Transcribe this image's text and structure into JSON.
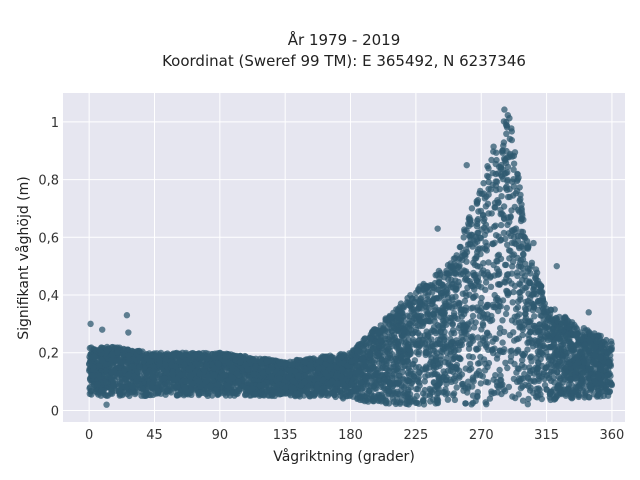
{
  "chart_data": {
    "type": "scatter",
    "title": "År 1979 - 2019",
    "subtitle": "Koordinat (Sweref 99 TM): E 365492, N 6237346",
    "xlabel": "Vågriktning (grader)",
    "ylabel": "Signifikant våghöjd (m)",
    "xlim": [
      -18,
      369
    ],
    "ylim": [
      -0.04,
      1.1
    ],
    "xticks": [
      0,
      45,
      90,
      135,
      180,
      225,
      270,
      315,
      360
    ],
    "xtick_labels": [
      "0",
      "45",
      "90",
      "135",
      "180",
      "225",
      "270",
      "315",
      "360"
    ],
    "yticks": [
      0,
      0.2,
      0.4,
      0.6,
      0.8,
      1
    ],
    "ytick_labels": [
      "0",
      "0,2",
      "0,4",
      "0,6",
      "0,8",
      "1"
    ],
    "grid": true,
    "colors": {
      "marker": "#2f5a70",
      "background": "#e6e6f0",
      "grid": "#ffffff"
    },
    "envelope": {
      "direction": [
        0,
        20,
        45,
        90,
        135,
        180,
        200,
        225,
        250,
        265,
        275,
        283,
        287,
        292,
        300,
        315,
        335,
        360
      ],
      "max_height": [
        0.22,
        0.22,
        0.2,
        0.2,
        0.17,
        0.2,
        0.3,
        0.42,
        0.52,
        0.72,
        0.86,
        1.03,
        1.05,
        0.98,
        0.62,
        0.37,
        0.3,
        0.24
      ],
      "min_height": [
        0.05,
        0.05,
        0.05,
        0.05,
        0.05,
        0.04,
        0.02,
        0.02,
        0.02,
        0.02,
        0.02,
        0.02,
        0.02,
        0.02,
        0.02,
        0.03,
        0.04,
        0.05
      ]
    },
    "outliers": [
      {
        "x": 1,
        "y": 0.3
      },
      {
        "x": 9,
        "y": 0.28
      },
      {
        "x": 26,
        "y": 0.33
      },
      {
        "x": 27,
        "y": 0.27
      },
      {
        "x": 12,
        "y": 0.02
      },
      {
        "x": 260,
        "y": 0.85
      },
      {
        "x": 322,
        "y": 0.5
      },
      {
        "x": 306,
        "y": 0.58
      },
      {
        "x": 344,
        "y": 0.34
      },
      {
        "x": 240,
        "y": 0.63
      }
    ]
  }
}
